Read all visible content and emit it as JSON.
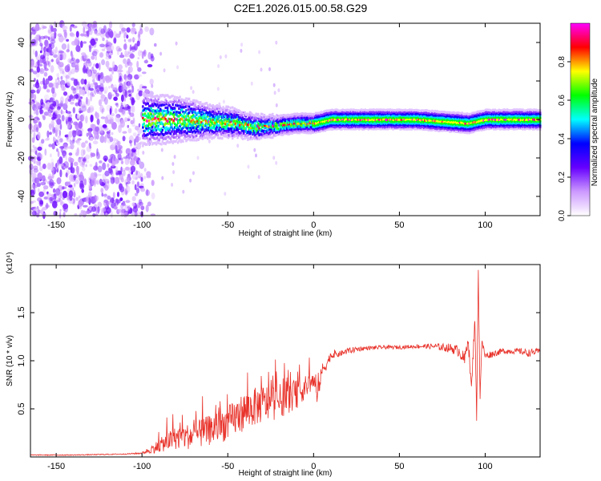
{
  "figure": {
    "title": "C2E1.2026.015.00.58.G29"
  },
  "chart_data": [
    {
      "type": "heatmap",
      "title": "C2E1.2026.015.00.58.G29",
      "xlabel": "Height of straight line (km)",
      "ylabel": "Frequency (Hz)",
      "xlim": [
        -165,
        132
      ],
      "ylim": [
        -50,
        50
      ],
      "x_ticks": [
        -150,
        -100,
        -50,
        0,
        50,
        100
      ],
      "y_ticks": [
        -40,
        -20,
        0,
        20,
        40
      ],
      "colorbar": {
        "label": "Normalized spectral amplitude",
        "range": [
          0,
          1
        ],
        "ticks": [
          "0.0",
          "0.2",
          "0.4",
          "0.6",
          "0.8"
        ],
        "colors": [
          "#ffffff",
          "#cc99ff",
          "#6600ff",
          "#0000ff",
          "#00ffff",
          "#00ff00",
          "#ffff00",
          "#ff0000",
          "#ff00ff"
        ]
      },
      "description_of_data": {
        "noise_region_x": [
          -165,
          -100
        ],
        "noise_amplitude": [
          0.05,
          0.25
        ],
        "signal_start_x": -100,
        "signal_center_frequency": [
          [
            -100,
            0
          ],
          [
            -80,
            0
          ],
          [
            -60,
            -1
          ],
          [
            -45,
            -2
          ],
          [
            -35,
            -4
          ],
          [
            -20,
            -3
          ],
          [
            -10,
            -2
          ],
          [
            0,
            -2
          ],
          [
            10,
            0
          ],
          [
            30,
            0
          ],
          [
            60,
            0
          ],
          [
            90,
            -2
          ],
          [
            100,
            0
          ],
          [
            130,
            0
          ]
        ],
        "signal_half_width_hz": [
          [
            -100,
            8
          ],
          [
            -80,
            7
          ],
          [
            -60,
            5
          ],
          [
            -40,
            4
          ],
          [
            -20,
            3
          ],
          [
            0,
            3
          ],
          [
            50,
            3
          ],
          [
            100,
            3
          ],
          [
            130,
            3
          ]
        ]
      }
    },
    {
      "type": "line",
      "xlabel": "Height of straight line (km)",
      "ylabel": "SNR (10 * v/v)",
      "y_multiplier": "(x10⁴)",
      "xlim": [
        -165,
        132
      ],
      "ylim": [
        0,
        2
      ],
      "x_ticks": [
        -150,
        -100,
        -50,
        0,
        50,
        100
      ],
      "y_ticks": [
        0.5,
        1.0,
        1.5
      ],
      "y_tick_labels": [
        "0.5",
        "1.0",
        "1.5"
      ],
      "series": [
        {
          "color": "#e8322a",
          "x": [
            -165,
            -140,
            -110,
            -100,
            -92,
            -80,
            -70,
            -60,
            -50,
            -40,
            -30,
            -20,
            -10,
            -5,
            0,
            2,
            5,
            8,
            10,
            15,
            20,
            25,
            30,
            40,
            50,
            60,
            70,
            80,
            85,
            88,
            90,
            92,
            94,
            95,
            96,
            97,
            98,
            100,
            110,
            120,
            125,
            132
          ],
          "values": [
            0.02,
            0.02,
            0.03,
            0.04,
            0.1,
            0.2,
            0.22,
            0.28,
            0.35,
            0.48,
            0.55,
            0.58,
            0.65,
            0.72,
            0.8,
            0.62,
            0.9,
            0.98,
            1.05,
            1.07,
            1.1,
            1.12,
            1.13,
            1.14,
            1.14,
            1.15,
            1.15,
            1.13,
            1.1,
            1.0,
            1.25,
            0.7,
            1.45,
            0.4,
            1.95,
            0.6,
            1.2,
            1.05,
            1.1,
            1.1,
            1.08,
            1.1
          ],
          "noise_amplitude": [
            0.005,
            0.005,
            0.005,
            0.01,
            0.06,
            0.12,
            0.14,
            0.16,
            0.18,
            0.2,
            0.2,
            0.18,
            0.15,
            0.12,
            0.1,
            0.1,
            0.08,
            0.06,
            0.04,
            0.03,
            0.03,
            0.03,
            0.02,
            0.02,
            0.02,
            0.02,
            0.03,
            0.05,
            0.06,
            0.08,
            0.08,
            0.06,
            0.06,
            0.05,
            0.04,
            0.04,
            0.04,
            0.04,
            0.03,
            0.03,
            0.04,
            0.03
          ]
        }
      ]
    }
  ]
}
